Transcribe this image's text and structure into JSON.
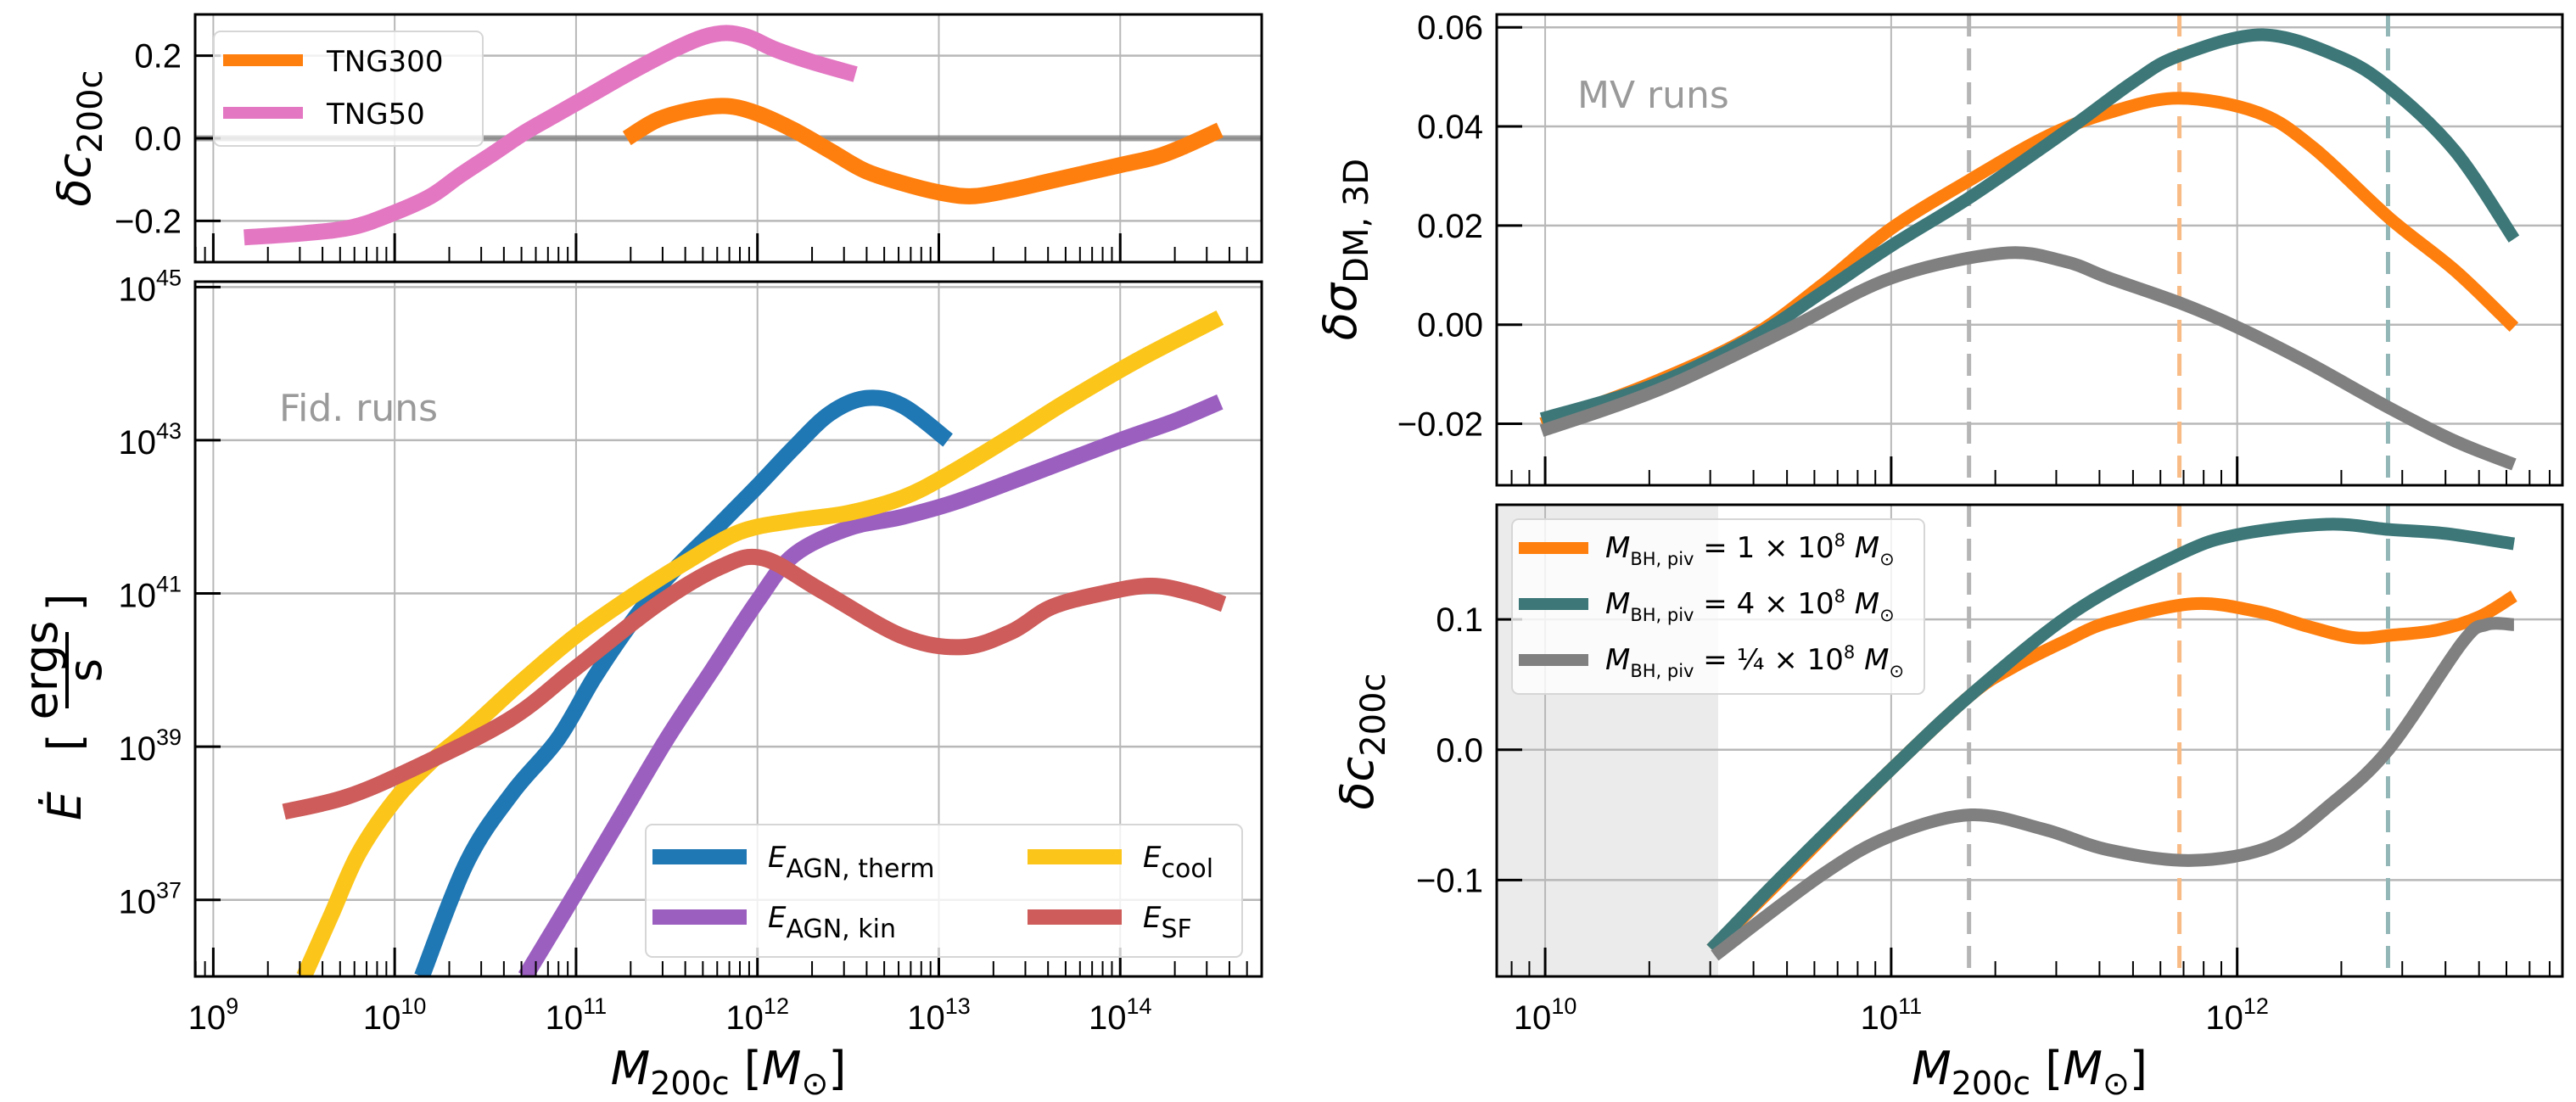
{
  "chart_data": [
    {
      "panel": "top-left",
      "type": "line",
      "x_is_log10_mass": true,
      "xlim_log10": [
        8.9,
        14.78
      ],
      "ylim": [
        -0.3,
        0.3
      ],
      "xticks_log10": [
        9,
        10,
        11,
        12,
        13,
        14
      ],
      "show_xtick_labels": false,
      "yticks": [
        -0.2,
        0.0,
        0.2
      ],
      "ytick_labels": [
        "−0.2",
        "0.0",
        "0.2"
      ],
      "ylabel": {
        "main": "δc",
        "sub": "200c"
      },
      "hline": 0.0,
      "grid": true,
      "legend": {
        "placement": "upper-left"
      },
      "series": [
        {
          "name": "TNG300",
          "color": "#ff7f0e",
          "points": [
            [
              11.28,
              0.0
            ],
            [
              11.45,
              0.045
            ],
            [
              11.65,
              0.07
            ],
            [
              11.83,
              0.078
            ],
            [
              12.0,
              0.06
            ],
            [
              12.2,
              0.02
            ],
            [
              12.4,
              -0.03
            ],
            [
              12.6,
              -0.08
            ],
            [
              12.85,
              -0.115
            ],
            [
              13.05,
              -0.135
            ],
            [
              13.2,
              -0.14
            ],
            [
              13.4,
              -0.125
            ],
            [
              13.6,
              -0.105
            ],
            [
              13.8,
              -0.085
            ],
            [
              14.0,
              -0.065
            ],
            [
              14.2,
              -0.045
            ],
            [
              14.35,
              -0.02
            ],
            [
              14.55,
              0.02
            ]
          ]
        },
        {
          "name": "TNG50",
          "color": "#e377c2",
          "points": [
            [
              9.17,
              -0.24
            ],
            [
              9.5,
              -0.23
            ],
            [
              9.77,
              -0.215
            ],
            [
              10.0,
              -0.18
            ],
            [
              10.2,
              -0.14
            ],
            [
              10.36,
              -0.09
            ],
            [
              10.55,
              -0.035
            ],
            [
              10.72,
              0.015
            ],
            [
              10.9,
              0.06
            ],
            [
              11.08,
              0.105
            ],
            [
              11.3,
              0.16
            ],
            [
              11.54,
              0.215
            ],
            [
              11.7,
              0.245
            ],
            [
              11.83,
              0.255
            ],
            [
              11.95,
              0.245
            ],
            [
              12.1,
              0.215
            ],
            [
              12.3,
              0.185
            ],
            [
              12.54,
              0.155
            ]
          ]
        }
      ]
    },
    {
      "panel": "bottom-left",
      "type": "line",
      "x_is_log10_mass": true,
      "y_is_log10": true,
      "xlim_log10": [
        8.9,
        14.78
      ],
      "ylim_log10": [
        36.0,
        45.07
      ],
      "xticks_log10": [
        9,
        10,
        11,
        12,
        13,
        14
      ],
      "xtick_labels": [
        {
          "base": "10",
          "exp": "9"
        },
        {
          "base": "10",
          "exp": "10"
        },
        {
          "base": "10",
          "exp": "11"
        },
        {
          "base": "10",
          "exp": "12"
        },
        {
          "base": "10",
          "exp": "13"
        },
        {
          "base": "10",
          "exp": "14"
        }
      ],
      "show_xtick_labels": true,
      "yticks_log10": [
        37,
        39,
        41,
        43,
        45
      ],
      "ytick_labels": [
        {
          "base": "10",
          "exp": "37"
        },
        {
          "base": "10",
          "exp": "39"
        },
        {
          "base": "10",
          "exp": "41"
        },
        {
          "base": "10",
          "exp": "43"
        },
        {
          "base": "10",
          "exp": "45"
        }
      ],
      "xlabel": {
        "main": "M",
        "sub": "200c",
        "unit_open": " [",
        "unit_main": "M",
        "unit_sub": "⊙",
        "unit_close": "]"
      },
      "ylabel": {
        "main": "Ė",
        "open": "[",
        "num": "ergs",
        "den": "s",
        "close": "]"
      },
      "annotation": "Fid. runs",
      "grid": true,
      "legend": {
        "placement": "lower-right",
        "columns": 2
      },
      "series": [
        {
          "name": "E_AGN, therm",
          "label_main": "E",
          "label_sub": "AGN, therm",
          "color": "#1f77b4",
          "points": [
            [
              10.15,
              36.0
            ],
            [
              10.4,
              37.5
            ],
            [
              10.65,
              38.4
            ],
            [
              10.9,
              39.1
            ],
            [
              11.1,
              39.9
            ],
            [
              11.3,
              40.6
            ],
            [
              11.5,
              41.2
            ],
            [
              11.75,
              41.8
            ],
            [
              12.0,
              42.4
            ],
            [
              12.2,
              42.9
            ],
            [
              12.4,
              43.35
            ],
            [
              12.6,
              43.55
            ],
            [
              12.8,
              43.45
            ],
            [
              13.05,
              43.0
            ]
          ]
        },
        {
          "name": "E_AGN, kin",
          "label_main": "E",
          "label_sub": "AGN, kin",
          "color": "#9b5fc0",
          "points": [
            [
              10.72,
              36.0
            ],
            [
              11.0,
              37.1
            ],
            [
              11.25,
              38.1
            ],
            [
              11.5,
              39.1
            ],
            [
              11.75,
              40.0
            ],
            [
              12.0,
              40.9
            ],
            [
              12.2,
              41.5
            ],
            [
              12.5,
              41.85
            ],
            [
              12.8,
              42.0
            ],
            [
              13.1,
              42.2
            ],
            [
              13.5,
              42.55
            ],
            [
              14.0,
              43.0
            ],
            [
              14.3,
              43.25
            ],
            [
              14.55,
              43.5
            ]
          ]
        },
        {
          "name": "E_cool",
          "label_main": "E",
          "label_sub": "cool",
          "color": "#fcc51a",
          "points": [
            [
              9.5,
              36.0
            ],
            [
              9.65,
              36.8
            ],
            [
              9.8,
              37.6
            ],
            [
              10.0,
              38.3
            ],
            [
              10.2,
              38.8
            ],
            [
              10.4,
              39.2
            ],
            [
              10.7,
              39.85
            ],
            [
              11.0,
              40.45
            ],
            [
              11.3,
              40.95
            ],
            [
              11.6,
              41.4
            ],
            [
              11.9,
              41.8
            ],
            [
              12.2,
              41.95
            ],
            [
              12.5,
              42.05
            ],
            [
              12.8,
              42.25
            ],
            [
              13.05,
              42.55
            ],
            [
              13.4,
              43.05
            ],
            [
              13.7,
              43.5
            ],
            [
              14.1,
              44.05
            ],
            [
              14.55,
              44.6
            ]
          ]
        },
        {
          "name": "E_SF",
          "label_main": "E",
          "label_sub": "SF",
          "color": "#cd5c5a",
          "points": [
            [
              9.39,
              38.15
            ],
            [
              9.73,
              38.34
            ],
            [
              10.09,
              38.7
            ],
            [
              10.63,
              39.35
            ],
            [
              11.0,
              40.03
            ],
            [
              11.45,
              40.86
            ],
            [
              11.8,
              41.35
            ],
            [
              12.03,
              41.46
            ],
            [
              12.35,
              41.04
            ],
            [
              12.8,
              40.44
            ],
            [
              13.13,
              40.3
            ],
            [
              13.4,
              40.5
            ],
            [
              13.62,
              40.82
            ],
            [
              13.9,
              41.0
            ],
            [
              14.17,
              41.1
            ],
            [
              14.4,
              41.0
            ],
            [
              14.57,
              40.86
            ]
          ]
        }
      ]
    },
    {
      "panel": "top-right",
      "type": "line",
      "x_is_log10_mass": true,
      "xlim_log10": [
        9.86,
        12.94
      ],
      "ylim": [
        -0.0324,
        0.0626
      ],
      "xticks_log10": [
        10,
        11,
        12
      ],
      "show_xtick_labels": false,
      "yticks": [
        -0.02,
        0.0,
        0.02,
        0.04,
        0.06
      ],
      "ytick_labels": [
        "−0.02",
        "0.00",
        "0.02",
        "0.04",
        "0.06"
      ],
      "ylabel": {
        "main": "δσ",
        "sub": "DM, 3D"
      },
      "annotation": "MV runs",
      "grid": true,
      "vlines": [
        {
          "x_log10": 11.225,
          "color": "#b5b5b5"
        },
        {
          "x_log10": 11.833,
          "color": "#f9bb85"
        },
        {
          "x_log10": 12.436,
          "color": "#93b6b7"
        }
      ],
      "series": [
        {
          "name": "M_BH,piv = 1e8",
          "color": "#ff7f0e",
          "points": [
            [
              9.99,
              -0.02
            ],
            [
              10.3,
              -0.012
            ],
            [
              10.59,
              -0.0026
            ],
            [
              10.8,
              0.008
            ],
            [
              11.0,
              0.0194
            ],
            [
              11.23,
              0.0293
            ],
            [
              11.45,
              0.038
            ],
            [
              11.63,
              0.0428
            ],
            [
              11.83,
              0.0457
            ],
            [
              12.06,
              0.0428
            ],
            [
              12.22,
              0.0357
            ],
            [
              12.44,
              0.0215
            ],
            [
              12.63,
              0.0109
            ],
            [
              12.8,
              -0.0005
            ]
          ]
        },
        {
          "name": "M_BH,piv = 4e8",
          "color": "#3d7778",
          "points": [
            [
              9.99,
              -0.019
            ],
            [
              10.3,
              -0.0125
            ],
            [
              10.59,
              -0.003
            ],
            [
              10.8,
              0.0065
            ],
            [
              11.0,
              0.0159
            ],
            [
              11.23,
              0.0258
            ],
            [
              11.51,
              0.0393
            ],
            [
              11.7,
              0.049
            ],
            [
              11.83,
              0.0542
            ],
            [
              12.07,
              0.0585
            ],
            [
              12.29,
              0.0542
            ],
            [
              12.44,
              0.0478
            ],
            [
              12.63,
              0.035
            ],
            [
              12.8,
              0.0173
            ]
          ]
        },
        {
          "name": "M_BH,piv = 0.25e8",
          "color": "#808080",
          "points": [
            [
              9.99,
              -0.0214
            ],
            [
              10.2,
              -0.0165
            ],
            [
              10.4,
              -0.011
            ],
            [
              10.7,
              -0.001
            ],
            [
              11.0,
              0.0094
            ],
            [
              11.32,
              0.0144
            ],
            [
              11.5,
              0.0128
            ],
            [
              11.63,
              0.0094
            ],
            [
              11.83,
              0.0045
            ],
            [
              12.0,
              -0.0005
            ],
            [
              12.2,
              -0.0075
            ],
            [
              12.44,
              -0.0168
            ],
            [
              12.63,
              -0.0235
            ],
            [
              12.8,
              -0.0282
            ]
          ]
        }
      ]
    },
    {
      "panel": "bottom-right",
      "type": "line",
      "x_is_log10_mass": true,
      "xlim_log10": [
        9.86,
        12.94
      ],
      "ylim": [
        -0.174,
        0.188
      ],
      "xticks_log10": [
        10,
        11,
        12
      ],
      "xtick_labels": [
        {
          "base": "10",
          "exp": "10"
        },
        {
          "base": "10",
          "exp": "11"
        },
        {
          "base": "10",
          "exp": "12"
        }
      ],
      "show_xtick_labels": true,
      "yticks": [
        -0.1,
        0.0,
        0.1
      ],
      "ytick_labels": [
        "−0.1",
        "0.0",
        "0.1"
      ],
      "xlabel": {
        "main": "M",
        "sub": "200c",
        "unit_open": " [",
        "unit_main": "M",
        "unit_sub": "⊙",
        "unit_close": "]"
      },
      "ylabel": {
        "main": "δc",
        "sub": "200c"
      },
      "grid": true,
      "shaded_x_log10": [
        9.86,
        10.5
      ],
      "vlines": [
        {
          "x_log10": 11.225,
          "color": "#b5b5b5"
        },
        {
          "x_log10": 11.833,
          "color": "#f9bb85"
        },
        {
          "x_log10": 12.436,
          "color": "#93b6b7"
        }
      ],
      "legend": {
        "placement": "upper-left"
      },
      "series": [
        {
          "name": "M_BH,piv = 1e8",
          "label": {
            "main": "M",
            "sub": "BH, piv",
            "rest": " = 1 × 10",
            "exp": "8",
            "unit": " M",
            "unit_sub": "⊙"
          },
          "color": "#ff7f0e",
          "points": [
            [
              10.48,
              -0.153
            ],
            [
              10.7,
              -0.095
            ],
            [
              11.0,
              -0.015
            ],
            [
              11.23,
              0.042
            ],
            [
              11.35,
              0.063
            ],
            [
              11.5,
              0.083
            ],
            [
              11.63,
              0.098
            ],
            [
              11.87,
              0.112
            ],
            [
              12.06,
              0.106
            ],
            [
              12.2,
              0.095
            ],
            [
              12.34,
              0.086
            ],
            [
              12.45,
              0.088
            ],
            [
              12.58,
              0.092
            ],
            [
              12.7,
              0.102
            ],
            [
              12.8,
              0.118
            ]
          ]
        },
        {
          "name": "M_BH,piv = 4e8",
          "label": {
            "main": "M",
            "sub": "BH, piv",
            "rest": " = 4 × 10",
            "exp": "8",
            "unit": " M",
            "unit_sub": "⊙"
          },
          "color": "#3d7778",
          "points": [
            [
              10.48,
              -0.153
            ],
            [
              10.7,
              -0.093
            ],
            [
              11.0,
              -0.015
            ],
            [
              11.23,
              0.042
            ],
            [
              11.53,
              0.106
            ],
            [
              11.83,
              0.1496
            ],
            [
              12.0,
              0.165
            ],
            [
              12.26,
              0.173
            ],
            [
              12.44,
              0.169
            ],
            [
              12.6,
              0.166
            ],
            [
              12.8,
              0.158
            ]
          ]
        },
        {
          "name": "M_BH,piv = 0.25e8",
          "label": {
            "main": "M",
            "sub": "BH, piv",
            "rest": " = ¼ × 10",
            "exp": "8",
            "unit": " M",
            "unit_sub": "⊙"
          },
          "color": "#808080",
          "points": [
            [
              10.49,
              -0.158
            ],
            [
              10.8,
              -0.096
            ],
            [
              11.0,
              -0.066
            ],
            [
              11.23,
              -0.05
            ],
            [
              11.44,
              -0.061
            ],
            [
              11.63,
              -0.077
            ],
            [
              11.87,
              -0.085
            ],
            [
              12.1,
              -0.074
            ],
            [
              12.27,
              -0.042
            ],
            [
              12.44,
              0.001
            ],
            [
              12.65,
              0.082
            ],
            [
              12.72,
              0.096
            ],
            [
              12.8,
              0.096
            ]
          ]
        }
      ]
    }
  ]
}
